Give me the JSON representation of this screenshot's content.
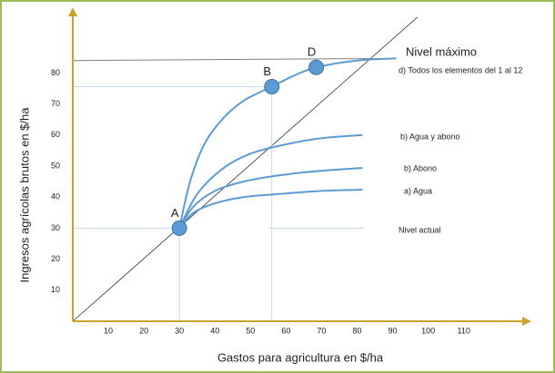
{
  "chart_data": {
    "type": "line",
    "xlabel": "Gastos para agricultura en $/ha",
    "ylabel": "Ingresos agrícolas brutos en $/ha",
    "xlim": [
      0,
      128
    ],
    "ylim": [
      0,
      100
    ],
    "xticks": [
      10,
      20,
      30,
      40,
      50,
      60,
      70,
      80,
      90,
      100,
      110
    ],
    "yticks": [
      10,
      20,
      30,
      40,
      50,
      60,
      70,
      80
    ],
    "series": [
      {
        "color": "#333333",
        "width": 0.8,
        "x": [
          0,
          97
        ],
        "values": [
          0,
          98
        ]
      },
      {
        "color": "#808080",
        "width": 1,
        "x": [
          0,
          91
        ],
        "values": [
          84,
          84.7
        ]
      },
      {
        "color": "#c5d9ec",
        "width": 1,
        "x": [
          55,
          82
        ],
        "values": [
          30,
          30
        ]
      },
      {
        "color": "#c5d9ec",
        "width": 1,
        "x": [
          0,
          30
        ],
        "values": [
          30,
          30
        ]
      },
      {
        "color": "#c5d9ec",
        "width": 1,
        "x": [
          30,
          30
        ],
        "values": [
          30,
          0
        ]
      },
      {
        "color": "#c5d9ec",
        "width": 1,
        "x": [
          0,
          56
        ],
        "values": [
          75.6,
          75.6
        ]
      },
      {
        "color": "#c5d9ec",
        "width": 1,
        "x": [
          56,
          56
        ],
        "values": [
          75.6,
          0
        ]
      },
      {
        "color": "#5b9bd5",
        "width": 2,
        "x": [
          30,
          33,
          37,
          42,
          48,
          56,
          62,
          68.5,
          80,
          91
        ],
        "values": [
          30,
          45,
          57,
          65,
          71,
          75.6,
          79,
          81.8,
          84,
          84.7
        ]
      },
      {
        "color": "#5b9bd5",
        "width": 2,
        "x": [
          30,
          35,
          42,
          50,
          60,
          70,
          81.5
        ],
        "values": [
          30,
          41,
          49,
          54,
          57,
          59,
          60
        ]
      },
      {
        "color": "#5b9bd5",
        "width": 2,
        "x": [
          30,
          34,
          40,
          48,
          58,
          70,
          81.5
        ],
        "values": [
          30,
          37,
          42,
          45,
          47,
          48.5,
          49.4
        ]
      },
      {
        "color": "#5b9bd5",
        "width": 2,
        "x": [
          30,
          34,
          40,
          48,
          58,
          70,
          81.5
        ],
        "values": [
          30,
          35,
          38,
          40,
          41,
          42,
          42.4
        ]
      }
    ],
    "points": {
      "color": "#5b9bd5",
      "labels": [
        "A",
        "B",
        "D"
      ],
      "x": [
        30,
        56,
        68.5
      ],
      "values": [
        30,
        75.6,
        81.8
      ]
    },
    "annotations": [
      "Nivel máximo",
      "d) Todos los elementos del 1 al 12",
      "b) Agua y abono",
      "b) Abono",
      "a) Agua",
      "Nivel actual"
    ]
  }
}
